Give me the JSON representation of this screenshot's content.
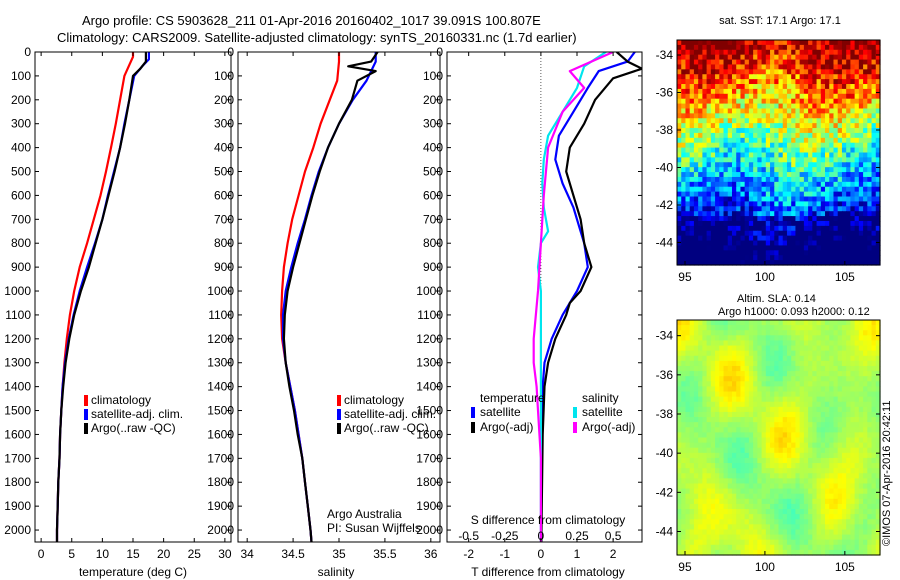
{
  "header": {
    "line1": "Argo profile: CS 5903628_211 01-Apr-2016 20160402_1017 39.091S 100.807E",
    "line2": "Climatology: CARS2009. Satellite-adjusted climatology: synTS_20160331.nc (1.7d earlier)"
  },
  "colors": {
    "climatology": "#ff0000",
    "satellite": "#0000ff",
    "argo": "#000000",
    "sal_satellite": "#00e5ee",
    "sal_argo": "#ff00ff"
  },
  "depth_axis": {
    "ylim": [
      0,
      2050
    ],
    "ticks": [
      0,
      100,
      200,
      300,
      400,
      500,
      600,
      700,
      800,
      900,
      1000,
      1100,
      1200,
      1300,
      1400,
      1500,
      1600,
      1700,
      1800,
      1900,
      2000
    ],
    "tick_labels": [
      "0",
      "100",
      "200",
      "300",
      "400",
      "500",
      "600",
      "700",
      "800",
      "900",
      "1000",
      "1100",
      "1200",
      "1300",
      "1400",
      "1500",
      "1600",
      "1700",
      "1800",
      "1900",
      "2000"
    ]
  },
  "temp_panel": {
    "xlabel": "temperature (deg C)",
    "xlim": [
      -1,
      31
    ],
    "xticks": [
      0,
      5,
      10,
      15,
      20,
      25,
      30
    ],
    "xtick_labels": [
      "0",
      "5",
      "10",
      "15",
      "20",
      "25",
      "30"
    ],
    "legend": [
      "climatology",
      "satellite-adj. clim.",
      "Argo(..raw -QC)"
    ]
  },
  "sal_panel": {
    "xlabel": "salinity",
    "xlim": [
      33.9,
      36.1
    ],
    "xticks": [
      34,
      34.5,
      35,
      35.5,
      36
    ],
    "xtick_labels": [
      "34",
      "34.5",
      "35",
      "35.5",
      "36"
    ],
    "legend": [
      "climatology",
      "satellite-adj. clim.",
      "Argo(..raw -QC)"
    ],
    "note1": "Argo Australia",
    "note2": "PI: Susan Wijffels"
  },
  "diff_panel": {
    "xlabel": "T difference from climatology",
    "xlim": [
      -2.6,
      2.8
    ],
    "xticks": [
      -2,
      -1,
      0,
      1,
      2
    ],
    "xtick_labels": [
      "-2",
      "-1",
      "0",
      "1",
      "2"
    ],
    "top_label": "S difference from climatology",
    "top_ticks": [
      -0.5,
      -0.25,
      0,
      0.25,
      0.5
    ],
    "top_tick_labels": [
      "-0.5",
      "-0.25",
      "0",
      "0.25",
      "0.5"
    ],
    "legend": {
      "temp_title": "temperature",
      "sal_title": "salinity",
      "t_sat": "satellite",
      "t_argo": "Argo(-adj)",
      "s_sat": "satellite",
      "s_argo": "Argo(-adj)"
    }
  },
  "sst_map": {
    "title": "sat. SST: 17.1  Argo: 17.1",
    "xlim": [
      94.5,
      107.2
    ],
    "ylim": [
      -45.2,
      -33.2
    ],
    "xticks": [
      95,
      100,
      105
    ],
    "xtick_labels": [
      "95",
      "100",
      "105"
    ],
    "yticks": [
      -34,
      -36,
      -38,
      -40,
      -42,
      -44
    ],
    "ytick_labels": [
      "-34",
      "-36",
      "-38",
      "-40",
      "-42",
      "-44"
    ]
  },
  "sla_map": {
    "title1": "Altim. SLA: 0.14",
    "title2": "Argo h1000: 0.093 h2000: 0.12",
    "xlim": [
      94.5,
      107.2
    ],
    "ylim": [
      -45.2,
      -33.2
    ],
    "xticks": [
      95,
      100,
      105
    ],
    "xtick_labels": [
      "95",
      "100",
      "105"
    ],
    "yticks": [
      -34,
      -36,
      -38,
      -40,
      -42,
      -44
    ],
    "ytick_labels": [
      "-34",
      "-36",
      "-38",
      "-40",
      "-42",
      "-44"
    ]
  },
  "credit": "©IMOS 07-Apr-2016 20:42:11",
  "chart_data": [
    {
      "type": "line",
      "title": "",
      "xlabel": "temperature (deg C)",
      "ylabel": "",
      "xlim": [
        -1,
        31
      ],
      "ylim": [
        2050,
        0
      ],
      "series": [
        {
          "name": "climatology",
          "points": [
            [
              15.0,
              0
            ],
            [
              15.0,
              20
            ],
            [
              14.3,
              60
            ],
            [
              13.6,
              100
            ],
            [
              12.9,
              200
            ],
            [
              12.2,
              300
            ],
            [
              11.4,
              400
            ],
            [
              10.6,
              500
            ],
            [
              9.7,
              600
            ],
            [
              8.6,
              700
            ],
            [
              7.5,
              800
            ],
            [
              6.3,
              900
            ],
            [
              5.4,
              1000
            ],
            [
              4.7,
              1100
            ],
            [
              4.2,
              1200
            ],
            [
              3.8,
              1300
            ],
            [
              3.5,
              1400
            ],
            [
              3.3,
              1500
            ],
            [
              3.1,
              1600
            ],
            [
              3.0,
              1700
            ],
            [
              2.8,
              1800
            ],
            [
              2.7,
              1900
            ],
            [
              2.6,
              2000
            ],
            [
              2.6,
              2050
            ]
          ]
        },
        {
          "name": "satellite-adj. clim.",
          "points": [
            [
              17.6,
              0
            ],
            [
              17.6,
              30
            ],
            [
              16.5,
              60
            ],
            [
              15.2,
              100
            ],
            [
              14.4,
              200
            ],
            [
              13.6,
              300
            ],
            [
              12.9,
              400
            ],
            [
              11.9,
              500
            ],
            [
              10.9,
              600
            ],
            [
              10.0,
              700
            ],
            [
              8.8,
              800
            ],
            [
              7.5,
              900
            ],
            [
              6.3,
              1000
            ],
            [
              5.3,
              1100
            ],
            [
              4.5,
              1200
            ],
            [
              3.9,
              1300
            ],
            [
              3.5,
              1400
            ],
            [
              3.3,
              1500
            ],
            [
              3.1,
              1600
            ],
            [
              3.0,
              1700
            ],
            [
              2.8,
              1800
            ],
            [
              2.7,
              1900
            ],
            [
              2.6,
              2000
            ],
            [
              2.6,
              2050
            ]
          ]
        },
        {
          "name": "Argo(..raw -QC)",
          "points": [
            [
              17.1,
              0
            ],
            [
              17.1,
              40
            ],
            [
              16.2,
              70
            ],
            [
              15.0,
              100
            ],
            [
              14.4,
              200
            ],
            [
              13.7,
              300
            ],
            [
              12.9,
              400
            ],
            [
              12.0,
              500
            ],
            [
              11.0,
              600
            ],
            [
              10.0,
              700
            ],
            [
              8.9,
              800
            ],
            [
              7.8,
              900
            ],
            [
              6.5,
              1000
            ],
            [
              5.4,
              1100
            ],
            [
              4.6,
              1200
            ],
            [
              4.0,
              1300
            ],
            [
              3.6,
              1400
            ],
            [
              3.3,
              1500
            ],
            [
              3.1,
              1600
            ],
            [
              3.0,
              1700
            ],
            [
              2.8,
              1800
            ],
            [
              2.7,
              1900
            ],
            [
              2.6,
              2000
            ],
            [
              2.6,
              2050
            ]
          ]
        }
      ]
    },
    {
      "type": "line",
      "title": "",
      "xlabel": "salinity",
      "ylabel": "",
      "xlim": [
        33.9,
        36.1
      ],
      "ylim": [
        2050,
        0
      ],
      "series": [
        {
          "name": "climatology",
          "points": [
            [
              35.0,
              0
            ],
            [
              35.0,
              40
            ],
            [
              34.98,
              120
            ],
            [
              34.9,
              200
            ],
            [
              34.8,
              300
            ],
            [
              34.72,
              400
            ],
            [
              34.63,
              500
            ],
            [
              34.56,
              600
            ],
            [
              34.49,
              700
            ],
            [
              34.44,
              800
            ],
            [
              34.4,
              900
            ],
            [
              34.38,
              1000
            ],
            [
              34.37,
              1100
            ],
            [
              34.38,
              1200
            ],
            [
              34.42,
              1300
            ],
            [
              34.47,
              1400
            ],
            [
              34.52,
              1500
            ],
            [
              34.56,
              1600
            ],
            [
              34.6,
              1700
            ],
            [
              34.63,
              1800
            ],
            [
              34.66,
              1900
            ],
            [
              34.69,
              2000
            ],
            [
              34.7,
              2050
            ]
          ]
        },
        {
          "name": "satellite-adj. clim.",
          "points": [
            [
              35.4,
              0
            ],
            [
              35.4,
              40
            ],
            [
              35.3,
              120
            ],
            [
              35.15,
              200
            ],
            [
              35.0,
              300
            ],
            [
              34.88,
              400
            ],
            [
              34.78,
              500
            ],
            [
              34.7,
              600
            ],
            [
              34.63,
              700
            ],
            [
              34.55,
              800
            ],
            [
              34.48,
              900
            ],
            [
              34.42,
              1000
            ],
            [
              34.39,
              1100
            ],
            [
              34.39,
              1200
            ],
            [
              34.42,
              1300
            ],
            [
              34.47,
              1400
            ],
            [
              34.52,
              1500
            ],
            [
              34.56,
              1600
            ],
            [
              34.6,
              1700
            ],
            [
              34.63,
              1800
            ],
            [
              34.66,
              1900
            ],
            [
              34.69,
              2000
            ],
            [
              34.7,
              2050
            ]
          ]
        },
        {
          "name": "Argo(..raw -QC)",
          "points": [
            [
              35.42,
              0
            ],
            [
              35.35,
              40
            ],
            [
              35.1,
              60
            ],
            [
              35.4,
              80
            ],
            [
              35.2,
              120
            ],
            [
              35.14,
              200
            ],
            [
              35.0,
              300
            ],
            [
              34.88,
              400
            ],
            [
              34.79,
              500
            ],
            [
              34.71,
              600
            ],
            [
              34.64,
              700
            ],
            [
              34.57,
              800
            ],
            [
              34.5,
              900
            ],
            [
              34.44,
              1000
            ],
            [
              34.41,
              1100
            ],
            [
              34.4,
              1200
            ],
            [
              34.42,
              1300
            ],
            [
              34.46,
              1400
            ],
            [
              34.51,
              1500
            ],
            [
              34.55,
              1600
            ],
            [
              34.6,
              1700
            ],
            [
              34.63,
              1800
            ],
            [
              34.66,
              1900
            ],
            [
              34.69,
              2000
            ],
            [
              34.7,
              2050
            ]
          ]
        }
      ]
    },
    {
      "type": "line",
      "title": "",
      "xlabel": "T difference from climatology",
      "x2label": "S difference from climatology",
      "ylabel": "",
      "xlim": [
        -2.6,
        2.8
      ],
      "ylim": [
        2050,
        0
      ],
      "series": [
        {
          "name": "temperature satellite",
          "points": [
            [
              2.6,
              0
            ],
            [
              2.4,
              40
            ],
            [
              1.6,
              80
            ],
            [
              1.3,
              150
            ],
            [
              0.9,
              250
            ],
            [
              0.5,
              350
            ],
            [
              0.4,
              450
            ],
            [
              0.6,
              550
            ],
            [
              0.9,
              650
            ],
            [
              1.1,
              750
            ],
            [
              1.2,
              800
            ],
            [
              1.3,
              900
            ],
            [
              1.0,
              1000
            ],
            [
              0.6,
              1100
            ],
            [
              0.3,
              1200
            ],
            [
              0.1,
              1300
            ],
            [
              0.05,
              1400
            ],
            [
              0.02,
              1600
            ],
            [
              0.01,
              2050
            ]
          ]
        },
        {
          "name": "temperature Argo(-adj)",
          "points": [
            [
              2.1,
              0
            ],
            [
              2.4,
              40
            ],
            [
              2.8,
              70
            ],
            [
              2.0,
              110
            ],
            [
              1.5,
              200
            ],
            [
              1.2,
              300
            ],
            [
              0.8,
              400
            ],
            [
              0.7,
              500
            ],
            [
              0.9,
              600
            ],
            [
              1.1,
              700
            ],
            [
              1.2,
              800
            ],
            [
              1.4,
              900
            ],
            [
              1.1,
              1000
            ],
            [
              0.8,
              1050
            ],
            [
              0.7,
              1100
            ],
            [
              0.4,
              1200
            ],
            [
              0.2,
              1300
            ],
            [
              0.1,
              1400
            ],
            [
              0.05,
              1600
            ],
            [
              0.01,
              2050
            ]
          ]
        },
        {
          "name": "salinity satellite",
          "points": [
            [
              0.45,
              0
            ],
            [
              0.3,
              60
            ],
            [
              0.25,
              150
            ],
            [
              0.15,
              250
            ],
            [
              0.05,
              350
            ],
            [
              0.02,
              450
            ],
            [
              0.01,
              550
            ],
            [
              0.02,
              650
            ],
            [
              0.05,
              750
            ],
            [
              0.0,
              800
            ],
            [
              -0.02,
              900
            ],
            [
              0.0,
              1000
            ],
            [
              0.0,
              1200
            ],
            [
              0.0,
              1500
            ],
            [
              0.0,
              2050
            ]
          ]
        },
        {
          "name": "salinity Argo(-adj)",
          "points": [
            [
              0.5,
              0
            ],
            [
              0.2,
              80
            ],
            [
              0.3,
              150
            ],
            [
              0.15,
              250
            ],
            [
              0.05,
              400
            ],
            [
              0.02,
              600
            ],
            [
              0.0,
              800
            ],
            [
              -0.02,
              1000
            ],
            [
              -0.05,
              1200
            ],
            [
              -0.05,
              1300
            ],
            [
              -0.03,
              1400
            ],
            [
              -0.02,
              1500
            ],
            [
              0.0,
              1700
            ],
            [
              0.0,
              2050
            ]
          ]
        }
      ]
    },
    {
      "type": "heatmap",
      "title": "sat. SST: 17.1  Argo: 17.1",
      "xlabel": "",
      "ylabel": "",
      "xlim": [
        94.5,
        107.2
      ],
      "ylim": [
        -45.2,
        -33.2
      ]
    },
    {
      "type": "heatmap",
      "title": "Altim. SLA: 0.14",
      "xlabel": "",
      "ylabel": "",
      "xlim": [
        94.5,
        107.2
      ],
      "ylim": [
        -45.2,
        -33.2
      ]
    }
  ]
}
